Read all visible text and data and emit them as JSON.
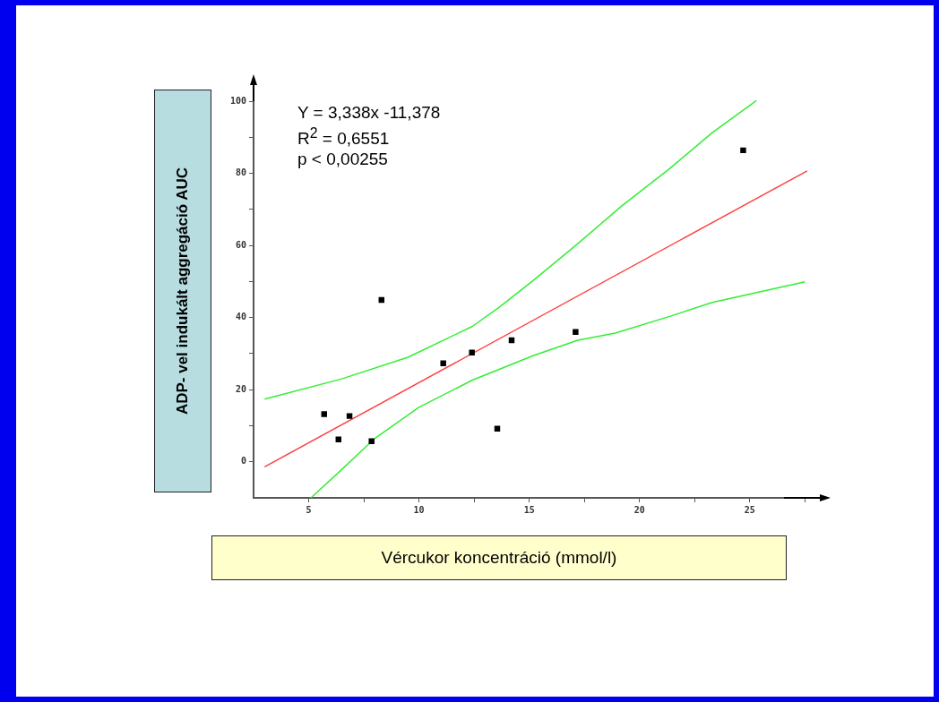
{
  "chart_data": {
    "type": "scatter",
    "xlabel": "Vércukor koncentráció (mmol/l)",
    "ylabel": "ADP- vel indukált aggregáció AUC",
    "annotations": [
      "Y  = 3,338x -11,378",
      "R$^{2}$ = 0,6551",
      "p  < 0,00255"
    ],
    "xlim": [
      2.5,
      28.5
    ],
    "ylim": [
      -10,
      104
    ],
    "xticks": [
      5,
      {
        "value": 7.5,
        "label": null
      },
      10,
      {
        "value": 12.5,
        "label": null
      },
      15,
      {
        "value": 17.5,
        "label": null
      },
      20,
      {
        "value": 22.5,
        "label": null
      },
      25,
      {
        "value": 27.5,
        "label": null
      }
    ],
    "yticks": [
      0,
      {
        "value": 10,
        "label": null
      },
      20,
      {
        "value": 30,
        "label": null
      },
      40,
      {
        "value": 50,
        "label": null
      },
      60,
      {
        "value": 70,
        "label": null
      },
      80,
      {
        "value": 90,
        "label": null
      },
      100
    ],
    "grid": false,
    "series": [
      {
        "marker": "square",
        "color": "#000000",
        "x": [
          5.7,
          6.35,
          6.85,
          7.85,
          8.3,
          11.1,
          12.4,
          13.55,
          14.2,
          17.1,
          24.7
        ],
        "values": [
          13.2,
          6.2,
          12.7,
          5.7,
          44.9,
          27.3,
          30.3,
          9.2,
          33.7,
          36,
          86.4
        ]
      },
      {
        "type": "line",
        "marker": "none",
        "color": "#ff4040",
        "x": [
          3,
          27.6
        ],
        "values": [
          -1.4,
          80.7
        ]
      },
      {
        "type": "line",
        "marker": "none",
        "color": "#33ee33",
        "x": [
          3,
          6.5,
          9.5,
          12.4,
          13.6,
          15.2,
          17.2,
          19.2,
          21.3,
          23.3,
          25.3
        ],
        "values": [
          17.4,
          23,
          29,
          37.5,
          42.7,
          50.4,
          60.5,
          71,
          81,
          91.3,
          100.2
        ]
      },
      {
        "type": "line",
        "marker": "none",
        "color": "#33ee33",
        "x": [
          5.1,
          6.4,
          8,
          10,
          12.4,
          15.2,
          17.2,
          18.9,
          21.3,
          23.3,
          27.5
        ],
        "values": [
          -10,
          -2.7,
          6.5,
          15.1,
          22.6,
          29.5,
          33.7,
          35.7,
          40.2,
          44.2,
          49.9
        ]
      }
    ]
  }
}
